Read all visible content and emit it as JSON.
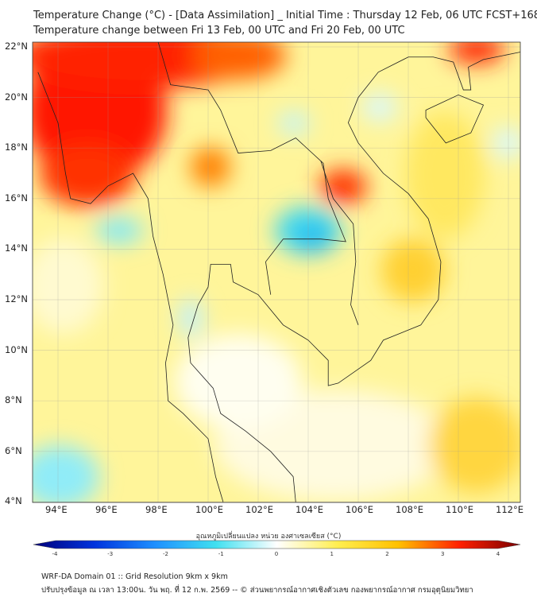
{
  "title": {
    "line1": "Temperature Change (°C) - [Data Assimilation] _ Initial Time : Thursday 12 Feb, 06 UTC FCST+168",
    "line2": "Temperature change between Fri 13 Feb, 00 UTC and Fri 20 Feb, 00 UTC"
  },
  "map": {
    "lat_labels": [
      "22°N",
      "20°N",
      "18°N",
      "16°N",
      "14°N",
      "12°N",
      "10°N",
      "8°N",
      "6°N",
      "4°N"
    ],
    "lon_labels": [
      "94°E",
      "96°E",
      "98°E",
      "100°E",
      "102°E",
      "104°E",
      "106°E",
      "108°E",
      "110°E",
      "112°E"
    ]
  },
  "colorbar": {
    "title": "อุณหภูมิเปลี่ยนแปลง หน่วย องศาเซลเซียส (°C)",
    "ticks": [
      "-4",
      "-3",
      "-2",
      "-1",
      "0",
      "1",
      "2",
      "3",
      "4"
    ],
    "colors": [
      "#00007a",
      "#0033dd",
      "#1e90ff",
      "#40e0f0",
      "#ffffff",
      "#ffee50",
      "#ffc000",
      "#ff2000",
      "#7a0000"
    ]
  },
  "footer": {
    "line1": "WRF-DA Domain 01 :: Grid Resolution 9km x 9km",
    "line2": "ปรับปรุงข้อมูล ณ เวลา 13:00น. วัน พฤ. ที่ 12 ก.พ. 2569 -- © ส่วนพยากรณ์อากาศเชิงตัวเลข กองพยากรณ์อากาศ กรมอุตุนิยมวิทยา"
  }
}
